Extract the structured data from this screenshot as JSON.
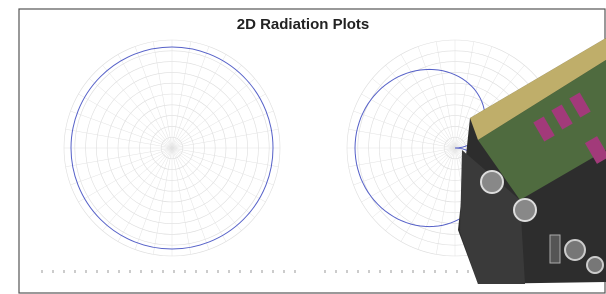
{
  "header": {
    "title": "2D Radiation Plots"
  }
}
